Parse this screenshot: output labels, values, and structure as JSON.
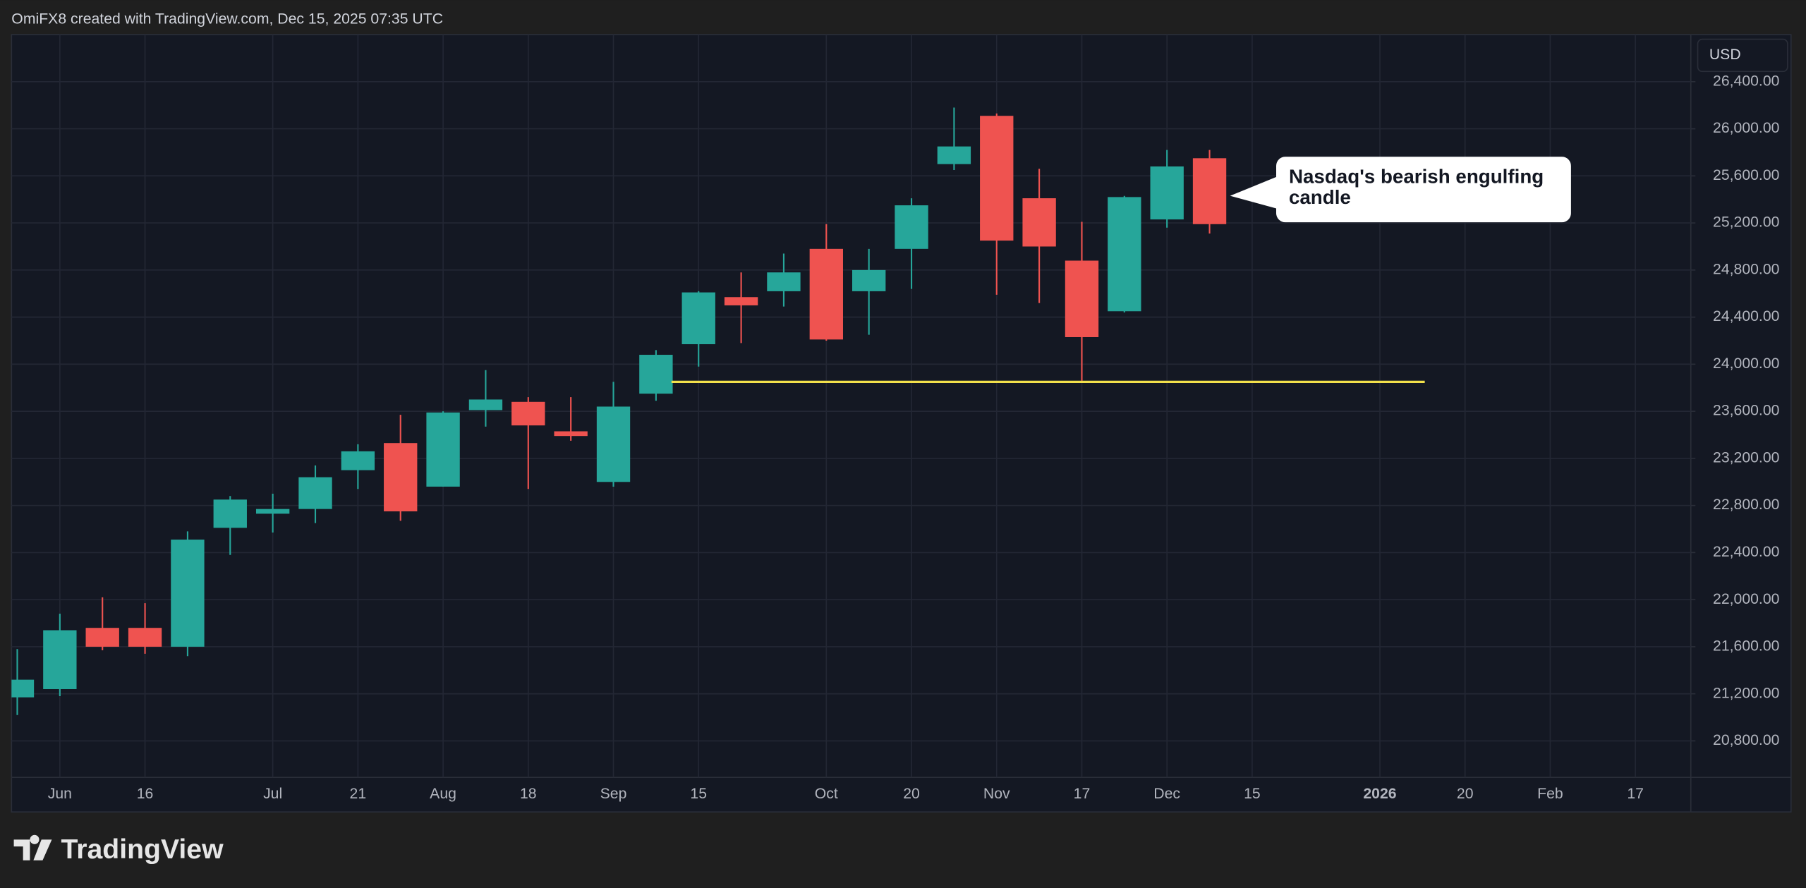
{
  "header": "OmiFX8 created with TradingView.com, Dec 15, 2025 07:35 UTC",
  "currency": "USD",
  "logo": "TradingView",
  "chart_data": {
    "type": "candlestick",
    "annotation": "Nasdaq's bearish engulfing candle",
    "categories": [
      null,
      "Jun",
      null,
      "16",
      null,
      null,
      "Jul",
      null,
      "21",
      null,
      "Aug",
      null,
      "18",
      null,
      "Sep",
      null,
      "15",
      null,
      null,
      "Oct",
      null,
      "20",
      null,
      "Nov",
      null,
      "17",
      null,
      "Dec",
      null,
      "15",
      null,
      null,
      "2026",
      null,
      "20",
      null,
      "Feb",
      null,
      "17"
    ],
    "open": [
      21170,
      21240,
      21760,
      21760,
      21600,
      22610,
      22730,
      22770,
      23100,
      23330,
      22960,
      23610,
      23680,
      23430,
      23000,
      23750,
      24170,
      24570,
      24620,
      24980,
      24620,
      24980,
      25700,
      26110,
      25410,
      24880,
      24450,
      25230,
      25750,
      null,
      null,
      null,
      null,
      null,
      null,
      null,
      null,
      null,
      null
    ],
    "high": [
      21580,
      21880,
      22020,
      21970,
      22580,
      22880,
      22900,
      23140,
      23320,
      23570,
      23600,
      23950,
      23720,
      23720,
      23850,
      24120,
      24620,
      24780,
      24940,
      25190,
      24980,
      25410,
      26180,
      26130,
      25660,
      25210,
      25430,
      25820,
      25820,
      null,
      null,
      null,
      null,
      null,
      null,
      null,
      null,
      null,
      null
    ],
    "low": [
      21020,
      21180,
      21570,
      21540,
      21520,
      22380,
      22570,
      22650,
      22940,
      22670,
      22960,
      23470,
      22940,
      23350,
      22960,
      23690,
      23980,
      24180,
      24490,
      24200,
      24250,
      24640,
      25650,
      24590,
      24520,
      23860,
      24440,
      25160,
      25110,
      null,
      null,
      null,
      null,
      null,
      null,
      null,
      null,
      null,
      null
    ],
    "close": [
      21320,
      21740,
      21600,
      21600,
      22510,
      22850,
      22770,
      23040,
      23260,
      22750,
      23590,
      23700,
      23480,
      23390,
      23640,
      24080,
      24610,
      24500,
      24780,
      24210,
      24800,
      25350,
      25850,
      25050,
      25000,
      24230,
      25420,
      25680,
      25190,
      null,
      null,
      null,
      null,
      null,
      null,
      null,
      null,
      null,
      null
    ],
    "up_color": "#26a69a",
    "down_color": "#ef5350",
    "hline": {
      "value": 23850,
      "color": "#f2e04b"
    },
    "ylim": [
      20490,
      26800
    ],
    "yticks": [
      {
        "value": 20800,
        "label": "20,800.00"
      },
      {
        "value": 21200,
        "label": "21,200.00"
      },
      {
        "value": 21600,
        "label": "21,600.00"
      },
      {
        "value": 22000,
        "label": "22,000.00"
      },
      {
        "value": 22400,
        "label": "22,400.00"
      },
      {
        "value": 22800,
        "label": "22,800.00"
      },
      {
        "value": 23200,
        "label": "23,200.00"
      },
      {
        "value": 23600,
        "label": "23,600.00"
      },
      {
        "value": 24000,
        "label": "24,000.00"
      },
      {
        "value": 24400,
        "label": "24,400.00"
      },
      {
        "value": 24800,
        "label": "24,800.00"
      },
      {
        "value": 25200,
        "label": "25,200.00"
      },
      {
        "value": 25600,
        "label": "25,600.00"
      },
      {
        "value": 26000,
        "label": "26,000.00"
      },
      {
        "value": 26400,
        "label": "26,400.00"
      }
    ],
    "grid": true
  }
}
